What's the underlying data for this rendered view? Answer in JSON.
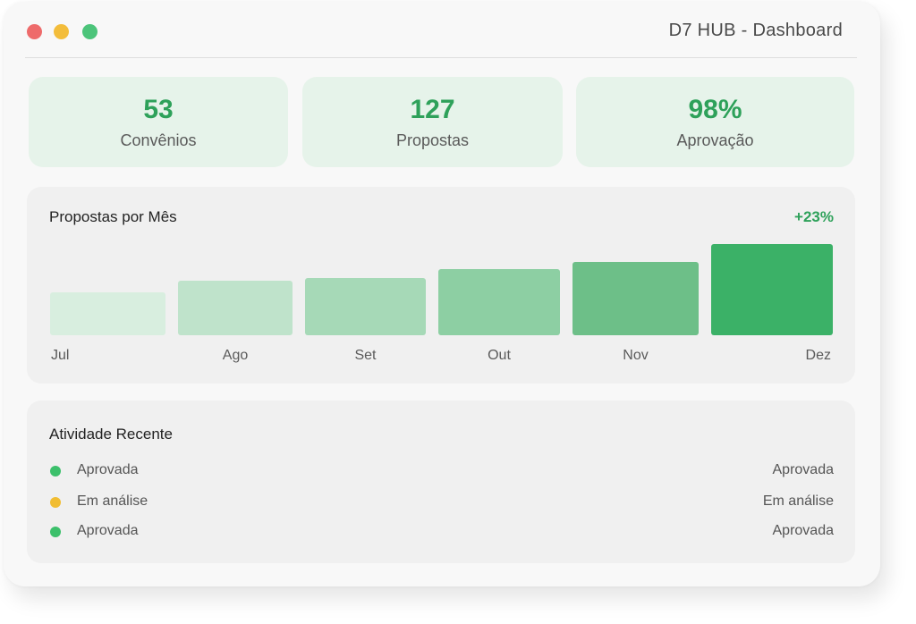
{
  "window": {
    "title": "D7 HUB - Dashboard",
    "controls": [
      "close",
      "minimize",
      "maximize"
    ]
  },
  "stats": [
    {
      "value": "53",
      "label": "Convênios"
    },
    {
      "value": "127",
      "label": "Propostas"
    },
    {
      "value": "98%",
      "label": "Aprovação"
    }
  ],
  "chart_data": {
    "type": "bar",
    "title": "Propostas por Mês",
    "growth": "+23%",
    "categories": [
      "Jul",
      "Ago",
      "Set",
      "Out",
      "Nov",
      "Dez"
    ],
    "values": [
      48,
      61,
      64,
      74,
      82,
      102
    ],
    "ylim": [
      0,
      102
    ],
    "colors": [
      "#d8eedf",
      "#bfe3cb",
      "#a6d9b7",
      "#8dcfa3",
      "#6dbf88",
      "#3bb167"
    ],
    "grid": false,
    "legend": "none"
  },
  "activity": {
    "title": "Atividade Recente",
    "items": [
      {
        "label": "Aprovada",
        "status": "Aprovada",
        "color": "#3cc06b"
      },
      {
        "label": "Em análise",
        "status": "Em análise",
        "color": "#f1bd32"
      },
      {
        "label": "Aprovada",
        "status": "Aprovada",
        "color": "#3cc06b"
      }
    ]
  }
}
